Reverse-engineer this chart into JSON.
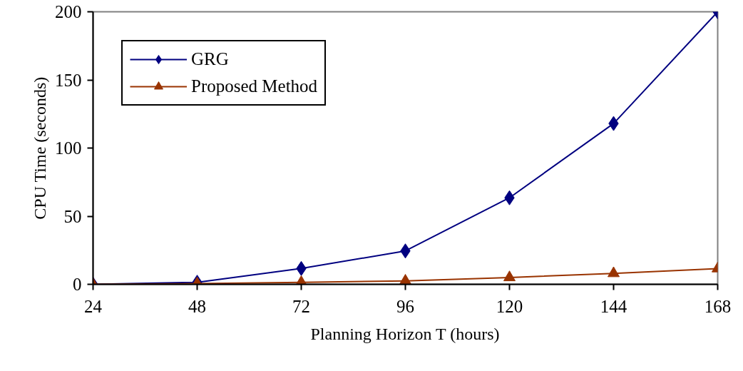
{
  "chart_data": {
    "type": "line",
    "xlabel": "Planning Horizon T (hours)",
    "ylabel": "CPU Time (seconds)",
    "x": [
      24,
      48,
      72,
      96,
      120,
      144,
      168
    ],
    "series": [
      {
        "name": "GRG",
        "color": "#000080",
        "marker": "diamond",
        "values": [
          0,
          1.5,
          11.6,
          24.5,
          63.5,
          118,
          200
        ]
      },
      {
        "name": "Proposed Method",
        "color": "#993300",
        "marker": "triangle",
        "values": [
          0,
          0.5,
          1.5,
          2.5,
          5,
          8,
          11.5
        ]
      }
    ],
    "xlim": [
      24,
      168
    ],
    "xticks": [
      24,
      48,
      72,
      96,
      120,
      144,
      168
    ],
    "ylim": [
      0,
      200
    ],
    "yticks": [
      0,
      50,
      100,
      150,
      200
    ],
    "grid": false,
    "legend": "top left",
    "line_style": "solid"
  }
}
